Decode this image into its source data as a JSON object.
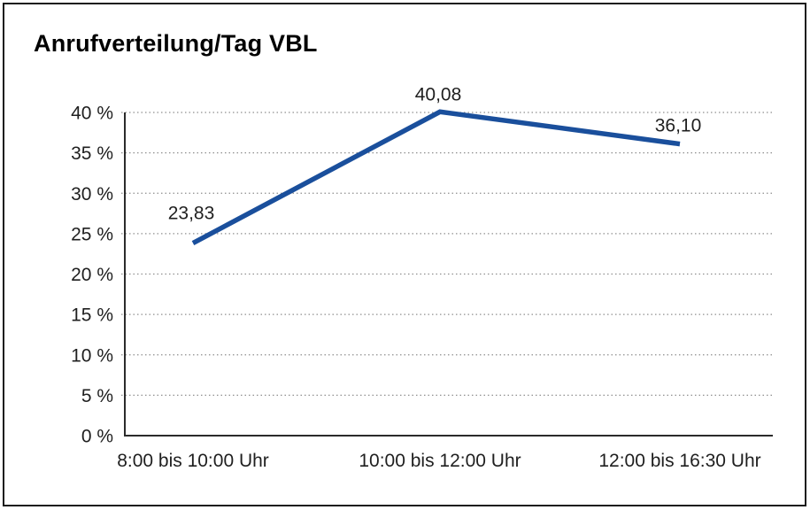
{
  "chart_data": {
    "type": "line",
    "title": "Anrufverteilung/Tag VBL",
    "categories": [
      "8:00 bis 10:00 Uhr",
      "10:00 bis 12:00 Uhr",
      "12:00 bis 16:30 Uhr"
    ],
    "values": [
      23.83,
      40.08,
      36.1
    ],
    "value_labels": [
      "23,83",
      "40,08",
      "36,10"
    ],
    "y_tick_values": [
      0,
      5,
      10,
      15,
      20,
      25,
      30,
      35,
      40
    ],
    "y_tick_labels": [
      "0 %",
      "5 %",
      "10 %",
      "15 %",
      "20 %",
      "25 %",
      "30 %",
      "35 %",
      "40 %"
    ],
    "ylim": [
      0,
      40
    ],
    "xlabel": "",
    "ylabel": "",
    "legend": "none",
    "grid": "horizontal-dotted",
    "line_color": "#1A4F9C",
    "grid_color": "#8f8f8f",
    "axis_color": "#2b2b2b",
    "text_color": "#1f1f1f"
  }
}
